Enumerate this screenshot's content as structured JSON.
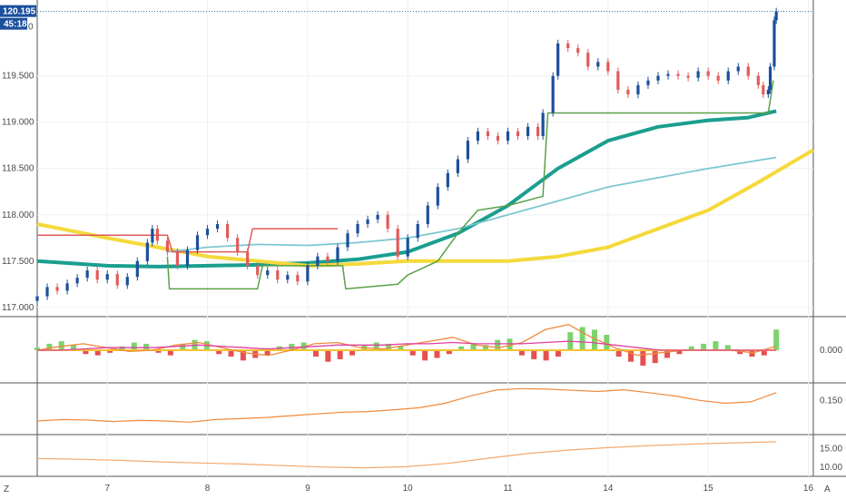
{
  "chart_data": {
    "type": "line",
    "instrument_price_now": "120.195",
    "countdown": "45:18",
    "x_tick_labels": [
      "7",
      "8",
      "9",
      "10",
      "11",
      "14",
      "15",
      "16"
    ],
    "x_tick_days": [
      1,
      2,
      3,
      4,
      5,
      6,
      7,
      8
    ],
    "x_range_days": [
      0.3,
      8.05
    ],
    "panes": [
      {
        "name": "price",
        "ylim": [
          116.93,
          120.28
        ],
        "y_ticks": [
          117.0,
          117.5,
          118.0,
          118.5,
          119.0,
          119.5
        ],
        "y_tick_labels": [
          "117.000",
          "117.500",
          "118.000",
          "118.500",
          "119.000",
          "119.500"
        ],
        "last_price": 120.195,
        "partial_tick_label": "0",
        "candles_close": [
          {
            "t": 0.3,
            "v": 117.12
          },
          {
            "t": 0.4,
            "v": 117.22
          },
          {
            "t": 0.5,
            "v": 117.18
          },
          {
            "t": 0.6,
            "v": 117.26
          },
          {
            "t": 0.7,
            "v": 117.32
          },
          {
            "t": 0.8,
            "v": 117.4
          },
          {
            "t": 0.9,
            "v": 117.3
          },
          {
            "t": 1.0,
            "v": 117.36
          },
          {
            "t": 1.1,
            "v": 117.24
          },
          {
            "t": 1.2,
            "v": 117.33
          },
          {
            "t": 1.3,
            "v": 117.5
          },
          {
            "t": 1.4,
            "v": 117.7
          },
          {
            "t": 1.45,
            "v": 117.85
          },
          {
            "t": 1.5,
            "v": 117.72
          },
          {
            "t": 1.6,
            "v": 117.6
          },
          {
            "t": 1.7,
            "v": 117.45
          },
          {
            "t": 1.8,
            "v": 117.62
          },
          {
            "t": 1.9,
            "v": 117.78
          },
          {
            "t": 2.0,
            "v": 117.85
          },
          {
            "t": 2.1,
            "v": 117.9
          },
          {
            "t": 2.2,
            "v": 117.75
          },
          {
            "t": 2.3,
            "v": 117.6
          },
          {
            "t": 2.4,
            "v": 117.45
          },
          {
            "t": 2.5,
            "v": 117.35
          },
          {
            "t": 2.6,
            "v": 117.4
          },
          {
            "t": 2.7,
            "v": 117.3
          },
          {
            "t": 2.8,
            "v": 117.35
          },
          {
            "t": 2.9,
            "v": 117.28
          },
          {
            "t": 3.0,
            "v": 117.45
          },
          {
            "t": 3.1,
            "v": 117.55
          },
          {
            "t": 3.2,
            "v": 117.5
          },
          {
            "t": 3.3,
            "v": 117.65
          },
          {
            "t": 3.4,
            "v": 117.8
          },
          {
            "t": 3.5,
            "v": 117.9
          },
          {
            "t": 3.6,
            "v": 117.95
          },
          {
            "t": 3.7,
            "v": 118.0
          },
          {
            "t": 3.8,
            "v": 117.85
          },
          {
            "t": 3.9,
            "v": 117.55
          },
          {
            "t": 4.0,
            "v": 117.75
          },
          {
            "t": 4.1,
            "v": 117.9
          },
          {
            "t": 4.2,
            "v": 118.1
          },
          {
            "t": 4.3,
            "v": 118.3
          },
          {
            "t": 4.4,
            "v": 118.45
          },
          {
            "t": 4.5,
            "v": 118.6
          },
          {
            "t": 4.6,
            "v": 118.8
          },
          {
            "t": 4.7,
            "v": 118.9
          },
          {
            "t": 4.8,
            "v": 118.85
          },
          {
            "t": 4.9,
            "v": 118.8
          },
          {
            "t": 5.0,
            "v": 118.9
          },
          {
            "t": 5.1,
            "v": 118.85
          },
          {
            "t": 5.2,
            "v": 118.95
          },
          {
            "t": 5.3,
            "v": 118.85
          },
          {
            "t": 5.35,
            "v": 119.1
          },
          {
            "t": 5.45,
            "v": 119.5
          },
          {
            "t": 5.5,
            "v": 119.85
          },
          {
            "t": 5.6,
            "v": 119.8
          },
          {
            "t": 5.7,
            "v": 119.75
          },
          {
            "t": 5.8,
            "v": 119.6
          },
          {
            "t": 5.9,
            "v": 119.65
          },
          {
            "t": 6.0,
            "v": 119.55
          },
          {
            "t": 6.1,
            "v": 119.35
          },
          {
            "t": 6.2,
            "v": 119.3
          },
          {
            "t": 6.3,
            "v": 119.4
          },
          {
            "t": 6.4,
            "v": 119.45
          },
          {
            "t": 6.5,
            "v": 119.5
          },
          {
            "t": 6.6,
            "v": 119.52
          },
          {
            "t": 6.7,
            "v": 119.5
          },
          {
            "t": 6.8,
            "v": 119.48
          },
          {
            "t": 6.9,
            "v": 119.55
          },
          {
            "t": 7.0,
            "v": 119.5
          },
          {
            "t": 7.1,
            "v": 119.45
          },
          {
            "t": 7.2,
            "v": 119.55
          },
          {
            "t": 7.3,
            "v": 119.6
          },
          {
            "t": 7.4,
            "v": 119.5
          },
          {
            "t": 7.5,
            "v": 119.4
          },
          {
            "t": 7.55,
            "v": 119.3
          },
          {
            "t": 7.6,
            "v": 119.35
          },
          {
            "t": 7.62,
            "v": 119.6
          },
          {
            "t": 7.66,
            "v": 120.1
          },
          {
            "t": 7.68,
            "v": 120.195
          }
        ],
        "series": [
          {
            "color": "#1a9e8f",
            "width": 4,
            "values": [
              {
                "t": 0.3,
                "v": 117.5
              },
              {
                "t": 1.0,
                "v": 117.45
              },
              {
                "t": 1.5,
                "v": 117.44
              },
              {
                "t": 2.0,
                "v": 117.45
              },
              {
                "t": 2.5,
                "v": 117.46
              },
              {
                "t": 3.0,
                "v": 117.48
              },
              {
                "t": 3.5,
                "v": 117.52
              },
              {
                "t": 4.0,
                "v": 117.6
              },
              {
                "t": 4.5,
                "v": 117.8
              },
              {
                "t": 5.0,
                "v": 118.1
              },
              {
                "t": 5.5,
                "v": 118.5
              },
              {
                "t": 6.0,
                "v": 118.8
              },
              {
                "t": 6.5,
                "v": 118.95
              },
              {
                "t": 7.0,
                "v": 119.02
              },
              {
                "t": 7.4,
                "v": 119.05
              },
              {
                "t": 7.68,
                "v": 119.12
              }
            ]
          },
          {
            "color": "#f4d93a",
            "width": 4,
            "values": [
              {
                "t": 0.3,
                "v": 117.9
              },
              {
                "t": 1.0,
                "v": 117.75
              },
              {
                "t": 1.5,
                "v": 117.65
              },
              {
                "t": 2.0,
                "v": 117.55
              },
              {
                "t": 2.5,
                "v": 117.5
              },
              {
                "t": 3.0,
                "v": 117.45
              },
              {
                "t": 3.5,
                "v": 117.47
              },
              {
                "t": 4.0,
                "v": 117.5
              },
              {
                "t": 4.5,
                "v": 117.5
              },
              {
                "t": 5.0,
                "v": 117.5
              },
              {
                "t": 5.5,
                "v": 117.55
              },
              {
                "t": 6.0,
                "v": 117.65
              },
              {
                "t": 6.5,
                "v": 117.85
              },
              {
                "t": 7.0,
                "v": 118.05
              },
              {
                "t": 7.5,
                "v": 118.35
              },
              {
                "t": 8.05,
                "v": 118.7
              }
            ]
          },
          {
            "color": "#7cc8d0",
            "width": 1.8,
            "values": [
              {
                "t": 1.6,
                "v": 117.6
              },
              {
                "t": 2.0,
                "v": 117.65
              },
              {
                "t": 2.5,
                "v": 117.68
              },
              {
                "t": 3.0,
                "v": 117.67
              },
              {
                "t": 3.5,
                "v": 117.7
              },
              {
                "t": 4.0,
                "v": 117.75
              },
              {
                "t": 4.5,
                "v": 117.85
              },
              {
                "t": 5.0,
                "v": 118.0
              },
              {
                "t": 5.5,
                "v": 118.15
              },
              {
                "t": 6.0,
                "v": 118.3
              },
              {
                "t": 6.5,
                "v": 118.4
              },
              {
                "t": 7.0,
                "v": 118.5
              },
              {
                "t": 7.68,
                "v": 118.62
              }
            ]
          },
          {
            "color": "#5aa04a",
            "width": 1.5,
            "values": [
              {
                "t": 1.6,
                "v": 117.55
              },
              {
                "t": 1.62,
                "v": 117.2
              },
              {
                "t": 2.5,
                "v": 117.2
              },
              {
                "t": 2.55,
                "v": 117.45
              },
              {
                "t": 3.35,
                "v": 117.45
              },
              {
                "t": 3.38,
                "v": 117.2
              },
              {
                "t": 3.9,
                "v": 117.25
              },
              {
                "t": 4.0,
                "v": 117.35
              },
              {
                "t": 4.3,
                "v": 117.5
              },
              {
                "t": 4.5,
                "v": 117.8
              },
              {
                "t": 4.7,
                "v": 118.05
              },
              {
                "t": 5.0,
                "v": 118.1
              },
              {
                "t": 5.35,
                "v": 118.2
              },
              {
                "t": 5.4,
                "v": 119.1
              },
              {
                "t": 7.6,
                "v": 119.1
              },
              {
                "t": 7.65,
                "v": 119.45
              }
            ]
          },
          {
            "color": "#e05a5a",
            "width": 1.5,
            "values": [
              {
                "t": 0.3,
                "v": 117.78
              },
              {
                "t": 1.6,
                "v": 117.78
              },
              {
                "t": 1.65,
                "v": 117.6
              },
              {
                "t": 2.4,
                "v": 117.6
              },
              {
                "t": 2.45,
                "v": 117.85
              },
              {
                "t": 3.3,
                "v": 117.85
              }
            ]
          }
        ]
      },
      {
        "name": "histogram",
        "ylim": [
          -0.24,
          0.24
        ],
        "y_ticks": [
          0.0
        ],
        "y_tick_labels": [
          "0.000"
        ],
        "bars": [
          0.02,
          0.05,
          0.07,
          0.04,
          -0.03,
          -0.04,
          -0.02,
          0.03,
          0.06,
          0.05,
          -0.02,
          -0.04,
          0.05,
          0.08,
          0.07,
          -0.03,
          -0.05,
          -0.08,
          -0.06,
          -0.04,
          0.03,
          0.05,
          0.06,
          -0.05,
          -0.09,
          -0.07,
          -0.04,
          0.04,
          0.06,
          0.05,
          0.03,
          -0.04,
          -0.08,
          -0.06,
          -0.03,
          0.03,
          0.05,
          0.04,
          0.08,
          0.09,
          -0.04,
          -0.07,
          -0.08,
          -0.05,
          0.14,
          0.18,
          0.16,
          0.12,
          -0.05,
          -0.09,
          -0.12,
          -0.1,
          -0.06,
          -0.03,
          0.03,
          0.05,
          0.07,
          0.04,
          -0.03,
          -0.05,
          -0.04,
          0.16
        ],
        "series": [
          {
            "color": "#f08a3c",
            "values": [
              0.0,
              0.03,
              0.05,
              0.02,
              -0.01,
              0.0,
              0.04,
              0.06,
              0.02,
              -0.02,
              -0.04,
              0.0,
              0.05,
              0.06,
              0.02,
              0.01,
              0.04,
              0.07,
              0.1,
              0.04,
              0.02,
              0.06,
              0.16,
              0.2,
              0.1,
              0.02,
              -0.04,
              -0.02,
              0.0,
              0.0,
              0.0,
              -0.02,
              0.03
            ]
          },
          {
            "color": "#e040a0",
            "values": [
              0.0,
              0.0,
              0.01,
              0.02,
              0.02,
              0.02,
              0.03,
              0.04,
              0.03,
              0.02,
              0.01,
              0.02,
              0.03,
              0.04,
              0.04,
              0.04,
              0.05,
              0.05,
              0.06,
              0.05,
              0.05,
              0.05,
              0.06,
              0.07,
              0.06,
              0.04,
              0.02,
              0.0,
              0.0,
              0.0,
              0.0,
              0.0,
              0.0
            ]
          }
        ]
      },
      {
        "name": "volatility",
        "ylim": [
          0.04,
          0.2
        ],
        "y_ticks": [
          0.15
        ],
        "y_tick_labels": [
          "0.150"
        ],
        "series": [
          {
            "color": "#f08a3c",
            "values": [
              0.08,
              0.085,
              0.083,
              0.078,
              0.082,
              0.08,
              0.076,
              0.085,
              0.088,
              0.092,
              0.098,
              0.104,
              0.11,
              0.112,
              0.118,
              0.125,
              0.14,
              0.165,
              0.185,
              0.19,
              0.188,
              0.184,
              0.18,
              0.186,
              0.176,
              0.165,
              0.15,
              0.14,
              0.145,
              0.176
            ]
          }
        ]
      },
      {
        "name": "slow-line",
        "ylim": [
          8.0,
          18.0
        ],
        "y_ticks": [
          10.0,
          15.0
        ],
        "y_tick_labels": [
          "10.00",
          "15.00"
        ],
        "series": [
          {
            "color": "#f5a86a",
            "values": [
              12.3,
              12.1,
              11.8,
              11.4,
              11.1,
              10.8,
              10.4,
              10.0,
              9.8,
              10.1,
              11.0,
              12.4,
              13.7,
              14.6,
              15.3,
              15.8,
              16.2,
              16.5,
              16.8
            ]
          }
        ]
      }
    ],
    "bottom_left_label": "Z",
    "bottom_right_label": "A"
  }
}
